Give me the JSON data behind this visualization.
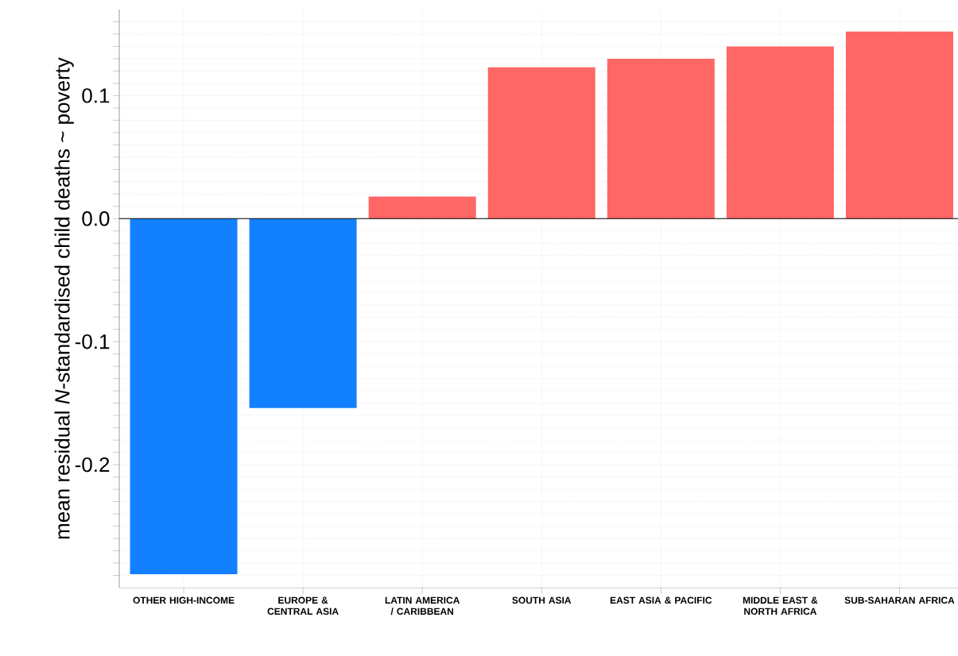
{
  "chart_data": {
    "type": "bar",
    "ylabel": "mean residual *N*-standardised child deaths ~ poverty",
    "categories": [
      "OTHER HIGH-INCOME",
      "EUROPE & CENTRAL ASIA",
      "LATIN AMERICA / CARIBBEAN",
      "SOUTH ASIA",
      "EAST ASIA & PACIFIC",
      "MIDDLE EAST & NORTH AFRICA",
      "SUB-SAHARAN AFRICA"
    ],
    "values": [
      -0.289,
      -0.154,
      0.018,
      0.123,
      0.13,
      0.14,
      0.152
    ],
    "colors": [
      "#1380ff",
      "#1380ff",
      "#ff6666",
      "#ff6666",
      "#ff6666",
      "#ff6666",
      "#ff6666"
    ],
    "ylim": [
      -0.3,
      0.17
    ],
    "yticks": [
      {
        "value": -0.2,
        "label": "-0.2"
      },
      {
        "value": -0.1,
        "label": "-0.1"
      },
      {
        "value": 0,
        "label": "0.0"
      },
      {
        "value": 0.1,
        "label": "0.1"
      },
      {
        "value": -0.29,
        "label": null
      },
      {
        "value": -0.28,
        "label": null
      },
      {
        "value": -0.27,
        "label": null
      },
      {
        "value": -0.26,
        "label": null
      },
      {
        "value": -0.25,
        "label": null
      },
      {
        "value": -0.24,
        "label": null
      },
      {
        "value": -0.23,
        "label": null
      },
      {
        "value": -0.22,
        "label": null
      },
      {
        "value": -0.21,
        "label": null
      },
      {
        "value": -0.19,
        "label": null
      },
      {
        "value": -0.18,
        "label": null
      },
      {
        "value": -0.17,
        "label": null
      },
      {
        "value": -0.16,
        "label": null
      },
      {
        "value": -0.15,
        "label": null
      },
      {
        "value": -0.14,
        "label": null
      },
      {
        "value": -0.13,
        "label": null
      },
      {
        "value": -0.12,
        "label": null
      },
      {
        "value": -0.11,
        "label": null
      },
      {
        "value": -0.09,
        "label": null
      },
      {
        "value": -0.08,
        "label": null
      },
      {
        "value": -0.07,
        "label": null
      },
      {
        "value": -0.06,
        "label": null
      },
      {
        "value": -0.05,
        "label": null
      },
      {
        "value": -0.04,
        "label": null
      },
      {
        "value": -0.03,
        "label": null
      },
      {
        "value": -0.02,
        "label": null
      },
      {
        "value": -0.01,
        "label": null
      },
      {
        "value": 0.01,
        "label": null
      },
      {
        "value": 0.02,
        "label": null
      },
      {
        "value": 0.03,
        "label": null
      },
      {
        "value": 0.04,
        "label": null
      },
      {
        "value": 0.05,
        "label": null
      },
      {
        "value": 0.06,
        "label": null
      },
      {
        "value": 0.07,
        "label": null
      },
      {
        "value": 0.08,
        "label": null
      },
      {
        "value": 0.09,
        "label": null
      },
      {
        "value": 0.11,
        "label": null
      },
      {
        "value": 0.12,
        "label": null
      },
      {
        "value": 0.13,
        "label": null
      },
      {
        "value": 0.14,
        "label": null
      },
      {
        "value": 0.15,
        "label": null
      },
      {
        "value": 0.16,
        "label": null
      }
    ],
    "ref_lines": [
      {
        "axis": "y",
        "value": 0
      }
    ],
    "grid": true
  }
}
